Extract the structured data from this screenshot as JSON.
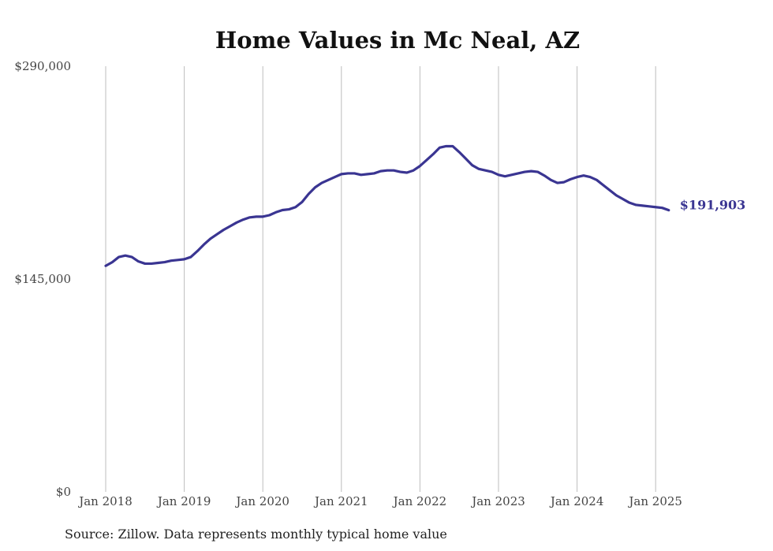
{
  "chart_data": {
    "type": "line",
    "title": "Home Values in Mc Neal, AZ",
    "xlabel": "",
    "ylabel": "",
    "ylim": [
      0,
      290000
    ],
    "ytick_values": [
      0,
      145000,
      290000
    ],
    "ytick_labels": [
      "$0",
      "$145,000",
      "$290,000"
    ],
    "xtick_labels": [
      "Jan 2018",
      "Jan 2019",
      "Jan 2020",
      "Jan 2021",
      "Jan 2022",
      "Jan 2023",
      "Jan 2024",
      "Jan 2025"
    ],
    "x_start_year": 2018,
    "x_end_month_index": 89,
    "grid": "vertical",
    "series": [
      {
        "name": "Typical home value",
        "color": "#3a3592",
        "end_label": "$191,903",
        "values": [
          154000,
          156500,
          160000,
          161000,
          160000,
          157000,
          155500,
          155500,
          156000,
          156500,
          157500,
          158000,
          158500,
          160000,
          164000,
          168500,
          172500,
          175500,
          178500,
          181000,
          183500,
          185500,
          187000,
          187500,
          187500,
          188500,
          190500,
          192000,
          192500,
          194000,
          197500,
          203000,
          207500,
          210500,
          212500,
          214500,
          216500,
          217000,
          217000,
          216000,
          216500,
          217000,
          218500,
          219000,
          219000,
          218000,
          217500,
          219000,
          222000,
          226000,
          230000,
          234500,
          235500,
          235500,
          231500,
          227000,
          222500,
          220000,
          219000,
          218000,
          216000,
          215000,
          216000,
          217000,
          218000,
          218500,
          218000,
          215500,
          212500,
          210500,
          211000,
          213000,
          214500,
          215500,
          214500,
          212500,
          209000,
          205500,
          202000,
          199500,
          197000,
          195500,
          195000,
          194500,
          194000,
          193500,
          191903
        ]
      }
    ]
  },
  "source_note": "Source: Zillow. Data represents monthly typical home value"
}
